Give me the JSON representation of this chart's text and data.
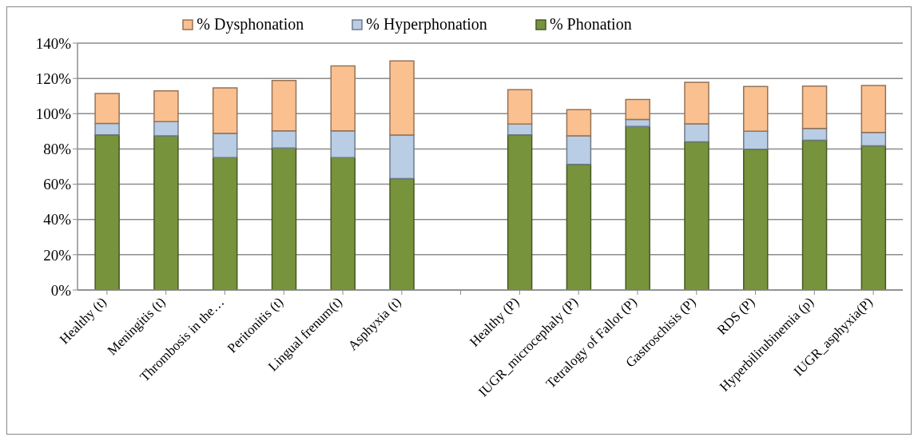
{
  "chart_data": {
    "type": "bar",
    "stacked": true,
    "categories": [
      "Healthy (t)",
      "Meningitis (t)",
      "Thrombosis in the…",
      "Peritonitis (t)",
      "Lingual frenum(t)",
      "Asphyxia (t)",
      null,
      "Healthy (P)",
      "IUGR_microcephaly (P)",
      "Tetralogy of Fallot (P)",
      "Gastroschisis (P)",
      "RDS (P)",
      "Hyperbilirubinemia (p)",
      "IUGR_asphyxia(P)"
    ],
    "series": [
      {
        "name": "% Phonation",
        "color": "#77933c",
        "values": [
          88.0,
          87.4,
          75.1,
          80.5,
          75.1,
          63.2,
          null,
          88.0,
          71.3,
          92.8,
          84.0,
          79.8,
          84.9,
          81.8
        ]
      },
      {
        "name": "% Hyperphonation",
        "color": "#b9cde5",
        "values": [
          6.5,
          8.1,
          13.7,
          9.8,
          15.2,
          24.7,
          null,
          6.1,
          16.1,
          3.9,
          10.2,
          10.2,
          6.7,
          7.6
        ]
      },
      {
        "name": "% Dysphonation",
        "color": "#fac090",
        "values": [
          16.9,
          17.4,
          25.8,
          28.5,
          36.8,
          42.0,
          null,
          19.5,
          14.9,
          11.4,
          23.6,
          25.4,
          24.1,
          26.6
        ]
      }
    ],
    "ylim": [
      0,
      140
    ],
    "yticks": [
      {
        "value": 0,
        "label": "0%"
      },
      {
        "value": 20,
        "label": "20%"
      },
      {
        "value": 40,
        "label": "40%"
      },
      {
        "value": 60,
        "label": "60%"
      },
      {
        "value": 80,
        "label": "80%"
      },
      {
        "value": 100,
        "label": "100%"
      },
      {
        "value": 120,
        "label": "120%"
      },
      {
        "value": 140,
        "label": "140%"
      }
    ],
    "grid": "y",
    "legend": "top"
  }
}
